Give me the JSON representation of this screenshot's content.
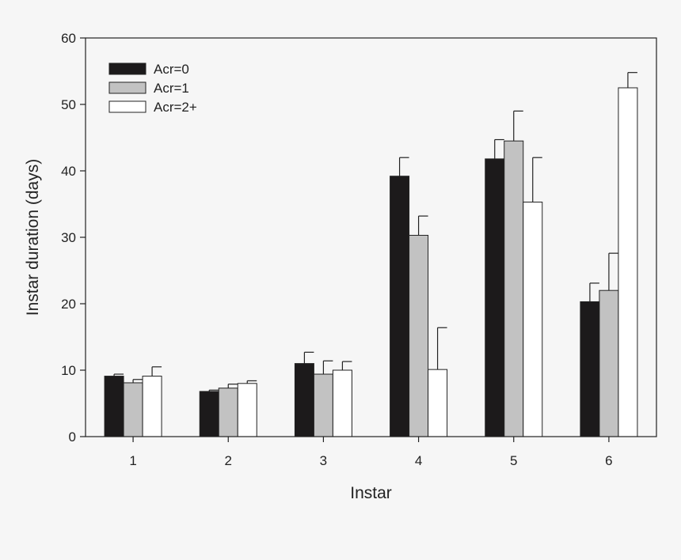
{
  "chart_data": {
    "type": "bar",
    "title": "",
    "xlabel": "Instar",
    "ylabel": "Instar duration (days)",
    "categories": [
      "1",
      "2",
      "3",
      "4",
      "5",
      "6"
    ],
    "ylim": [
      0,
      60
    ],
    "yticks": [
      "0",
      "10",
      "20",
      "30",
      "40",
      "50",
      "60"
    ],
    "grid": false,
    "legend_position": "top-left",
    "series": [
      {
        "name": "Acr=0",
        "color": "#1c1a1b",
        "values": [
          9.1,
          6.8,
          11.0,
          39.2,
          41.8,
          20.3
        ],
        "errors": [
          0.3,
          0.2,
          1.7,
          2.8,
          2.9,
          2.8
        ]
      },
      {
        "name": "Acr=1",
        "color": "#c2c2c2",
        "values": [
          8.1,
          7.3,
          9.4,
          30.3,
          44.5,
          22.0
        ],
        "errors": [
          0.5,
          0.6,
          2.0,
          2.9,
          4.5,
          5.6
        ]
      },
      {
        "name": "Acr=2+",
        "color": "#ffffff",
        "values": [
          9.1,
          8.0,
          10.0,
          10.1,
          35.3,
          52.5
        ],
        "errors": [
          1.4,
          0.4,
          1.3,
          6.3,
          6.7,
          2.3
        ]
      }
    ]
  }
}
